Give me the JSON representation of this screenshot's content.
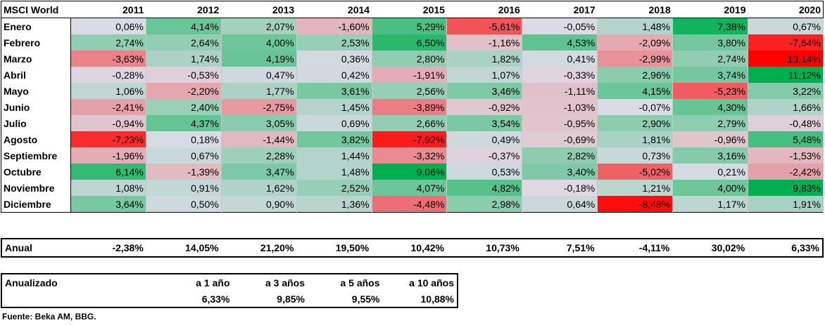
{
  "chart_data": {
    "type": "heatmap",
    "title": "MSCI World",
    "columns": [
      "2011",
      "2012",
      "2013",
      "2014",
      "2015",
      "2016",
      "2017",
      "2018",
      "2019",
      "2020"
    ],
    "rows": [
      "Enero",
      "Febrero",
      "Marzo",
      "Abril",
      "Mayo",
      "Junio",
      "Julio",
      "Agosto",
      "Septiembre",
      "Octubre",
      "Noviembre",
      "Diciembre"
    ],
    "values": [
      [
        0.06,
        4.14,
        2.07,
        -1.6,
        5.29,
        -5.61,
        -0.05,
        1.48,
        7.38,
        0.67
      ],
      [
        2.74,
        2.64,
        4.0,
        2.53,
        6.5,
        -1.16,
        4.53,
        -2.09,
        3.8,
        -7.64
      ],
      [
        -3.63,
        1.74,
        4.19,
        0.36,
        2.8,
        1.82,
        0.41,
        -2.99,
        2.74,
        -13.14
      ],
      [
        -0.28,
        -0.53,
        0.47,
        0.42,
        -1.91,
        1.07,
        -0.33,
        2.96,
        3.74,
        11.12
      ],
      [
        1.06,
        -2.2,
        1.77,
        3.61,
        2.56,
        3.46,
        -1.11,
        4.15,
        -5.23,
        3.22
      ],
      [
        -2.41,
        2.4,
        -2.75,
        1.45,
        -3.89,
        -0.92,
        -1.03,
        -0.07,
        4.3,
        1.66
      ],
      [
        -0.94,
        4.37,
        3.05,
        0.69,
        2.66,
        3.54,
        -0.95,
        2.9,
        2.79,
        -0.48
      ],
      [
        -7.23,
        0.18,
        -1.44,
        3.82,
        -7.92,
        0.49,
        -0.69,
        1.81,
        -0.96,
        5.48
      ],
      [
        -1.96,
        0.67,
        2.28,
        1.44,
        -3.32,
        -0.37,
        2.82,
        0.73,
        3.16,
        -1.53
      ],
      [
        6.14,
        -1.39,
        3.47,
        1.48,
        9.06,
        0.53,
        3.4,
        -5.02,
        0.21,
        -2.42
      ],
      [
        1.08,
        0.91,
        1.62,
        2.52,
        4.07,
        4.82,
        -0.18,
        1.21,
        4.0,
        9.83
      ],
      [
        3.64,
        0.5,
        0.9,
        1.36,
        -4.48,
        2.98,
        0.64,
        -8.48,
        1.17,
        1.91
      ]
    ],
    "cells": [
      [
        "0,06%",
        "4,14%",
        "2,07%",
        "-1,60%",
        "5,29%",
        "-5,61%",
        "-0,05%",
        "1,48%",
        "7,38%",
        "0,67%"
      ],
      [
        "2,74%",
        "2,64%",
        "4,00%",
        "2,53%",
        "6,50%",
        "-1,16%",
        "4,53%",
        "-2,09%",
        "3,80%",
        "-7,64%"
      ],
      [
        "-3,63%",
        "1,74%",
        "4,19%",
        "0,36%",
        "2,80%",
        "1,82%",
        "0,41%",
        "-2,99%",
        "2,74%",
        "-13,14%"
      ],
      [
        "-0,28%",
        "-0,53%",
        "0,47%",
        "0,42%",
        "-1,91%",
        "1,07%",
        "-0,33%",
        "2,96%",
        "3,74%",
        "11,12%"
      ],
      [
        "1,06%",
        "-2,20%",
        "1,77%",
        "3,61%",
        "2,56%",
        "3,46%",
        "-1,11%",
        "4,15%",
        "-5,23%",
        "3,22%"
      ],
      [
        "-2,41%",
        "2,40%",
        "-2,75%",
        "1,45%",
        "-3,89%",
        "-0,92%",
        "-1,03%",
        "-0,07%",
        "4,30%",
        "1,66%"
      ],
      [
        "-0,94%",
        "4,37%",
        "3,05%",
        "0,69%",
        "2,66%",
        "3,54%",
        "-0,95%",
        "2,90%",
        "2,79%",
        "-0,48%"
      ],
      [
        "-7,23%",
        "0,18%",
        "-1,44%",
        "3,82%",
        "-7,92%",
        "0,49%",
        "-0,69%",
        "1,81%",
        "-0,96%",
        "5,48%"
      ],
      [
        "-1,96%",
        "0,67%",
        "2,28%",
        "1,44%",
        "-3,32%",
        "-0,37%",
        "2,82%",
        "0,73%",
        "3,16%",
        "-1,53%"
      ],
      [
        "6,14%",
        "-1,39%",
        "3,47%",
        "1,48%",
        "9,06%",
        "0,53%",
        "3,40%",
        "-5,02%",
        "0,21%",
        "-2,42%"
      ],
      [
        "1,08%",
        "0,91%",
        "1,62%",
        "2,52%",
        "4,07%",
        "4,82%",
        "-0,18%",
        "1,21%",
        "4,00%",
        "9,83%"
      ],
      [
        "3,64%",
        "0,50%",
        "0,90%",
        "1,36%",
        "-4,48%",
        "2,98%",
        "0,64%",
        "-8,48%",
        "1,17%",
        "1,91%"
      ]
    ],
    "colors": {
      "positive": "#00b050",
      "negative": "#ff0000",
      "neutral": "#dcdce6"
    }
  },
  "annual": {
    "label": "Anual",
    "values": [
      "-2,38%",
      "14,05%",
      "21,20%",
      "19,50%",
      "10,42%",
      "10,73%",
      "7,51%",
      "-4,11%",
      "30,02%",
      "6,33%"
    ]
  },
  "annualized": {
    "label": "Anualizado",
    "headers": [
      "a 1 año",
      "a 3 años",
      "a 5 años",
      "a 10 años"
    ],
    "values": [
      "6,33%",
      "9,85%",
      "9,55%",
      "10,88%"
    ]
  },
  "source": "Fuente: Beka AM, BBG."
}
